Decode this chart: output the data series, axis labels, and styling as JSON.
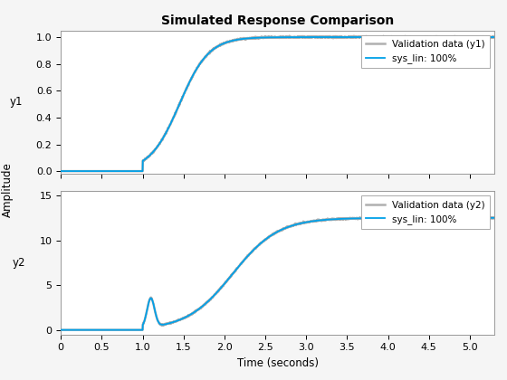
{
  "title": "Simulated Response Comparison",
  "xlabel": "Time (seconds)",
  "ylabel_shared": "Amplitude",
  "ylabel1": "y1",
  "ylabel2": "y2",
  "legend1": [
    "Validation data (y1)",
    "sys_lin: 100%"
  ],
  "legend2": [
    "Validation data (y2)",
    "sys_lin: 100%"
  ],
  "color_validation": "#b0b0b0",
  "color_syslin": "#00a0e8",
  "xlim": [
    0,
    5.3
  ],
  "ylim1": [
    -0.02,
    1.05
  ],
  "ylim2": [
    -0.5,
    15.5
  ],
  "xticks": [
    0,
    0.5,
    1.0,
    1.5,
    2.0,
    2.5,
    3.0,
    3.5,
    4.0,
    4.5,
    5.0
  ],
  "yticks1": [
    0,
    0.2,
    0.4,
    0.6,
    0.8,
    1.0
  ],
  "yticks2": [
    0,
    5,
    10,
    15
  ],
  "bg_color": "#f5f5f5",
  "axes_bg": "#ffffff",
  "title_fontsize": 10,
  "label_fontsize": 8.5,
  "tick_fontsize": 8,
  "legend_fontsize": 7.5
}
